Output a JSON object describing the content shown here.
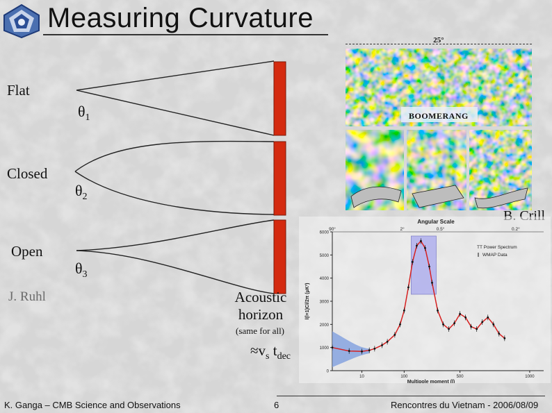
{
  "slide": {
    "title": "Measuring Curvature",
    "labels": {
      "flat": "Flat",
      "closed": "Closed",
      "open": "Open"
    },
    "thetas": [
      {
        "symbol": "θ",
        "sub": "1"
      },
      {
        "symbol": "θ",
        "sub": "2"
      },
      {
        "symbol": "θ",
        "sub": "3"
      }
    ],
    "credit_left": "J. Ruhl",
    "credit_right": "B. Crill",
    "acoustic": {
      "line1": "Acoustic",
      "line2": "horizon",
      "note": "(same for all)",
      "formula_approx": "≈",
      "formula_v": "v",
      "formula_vsub": "s",
      "formula_t": "t",
      "formula_tsub": "dec"
    },
    "footer": {
      "left": "K. Ganga – CMB Science and Observations",
      "page": "6",
      "right": "Rencontres du Vietnam - 2006/08/09"
    }
  },
  "maps": {
    "scale_label": "25°",
    "boomerang_label": "BOOMERANG",
    "angular_scale_label": "Angular Scale"
  },
  "colors": {
    "background": "#d9d9d9",
    "bar": "#d42a0f",
    "fit_line": "#d62020",
    "highlight_box": "#a9a9ef",
    "error_band": "#7f9fdf"
  },
  "chart_data": {
    "type": "scatter",
    "title": "",
    "xlabel": "Multipole moment (l)",
    "ylabel": "l(l+1)Cl/2π (μK²)",
    "x_scale": "log-then-linear",
    "top_axis_ticks": [
      "90°",
      "2°",
      "0.5°",
      "0.2°"
    ],
    "x_ticks": [
      "10",
      "100",
      "500",
      "1000"
    ],
    "y_ticks": [
      "0",
      "1000",
      "2000",
      "3000",
      "4000",
      "5000",
      "6000"
    ],
    "ylim": [
      0,
      6000
    ],
    "legend": {
      "title": "TT Power Spectrum",
      "series": "WMAP Data"
    },
    "series": [
      {
        "name": "WMAP Data",
        "l": [
          2,
          5,
          10,
          15,
          20,
          30,
          40,
          60,
          80,
          100,
          130,
          160,
          190,
          220,
          250,
          280,
          300,
          340,
          380,
          420,
          460,
          500,
          540,
          580,
          620,
          660,
          700,
          740,
          780,
          820
        ],
        "values": [
          1000,
          850,
          830,
          880,
          950,
          1100,
          1250,
          1550,
          2000,
          2600,
          3600,
          4700,
          5400,
          5600,
          5300,
          4500,
          3800,
          2600,
          2000,
          1800,
          2050,
          2450,
          2300,
          1900,
          1800,
          2100,
          2300,
          2000,
          1600,
          1400
        ]
      }
    ]
  }
}
